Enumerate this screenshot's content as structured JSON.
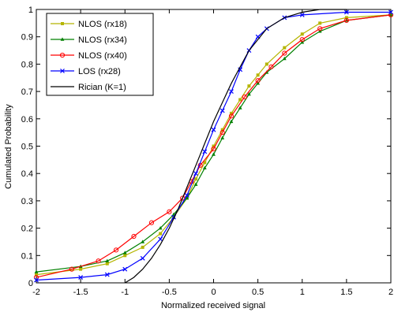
{
  "chart_data": {
    "type": "line",
    "title": "",
    "xlabel": "Normalized received signal",
    "ylabel": "Cumulated Probability",
    "xlim": [
      -2,
      2
    ],
    "ylim": [
      0,
      1
    ],
    "xticks": [
      "-2",
      "-1.5",
      "-1",
      "-0.5",
      "0",
      "0.5",
      "1",
      "1.5",
      "2"
    ],
    "yticks": [
      "0",
      "0.1",
      "0.2",
      "0.3",
      "0.4",
      "0.5",
      "0.6",
      "0.7",
      "0.8",
      "0.9",
      "1"
    ],
    "grid": false,
    "legend_position": "top-left",
    "series": [
      {
        "name": "NLOS (rx18)",
        "color": "#b5b500",
        "marker": "dot",
        "points": [
          [
            -2.0,
            0.03
          ],
          [
            -1.5,
            0.05
          ],
          [
            -1.2,
            0.07
          ],
          [
            -1.0,
            0.1
          ],
          [
            -0.8,
            0.13
          ],
          [
            -0.6,
            0.18
          ],
          [
            -0.45,
            0.24
          ],
          [
            -0.3,
            0.31
          ],
          [
            -0.2,
            0.38
          ],
          [
            -0.1,
            0.44
          ],
          [
            0.0,
            0.5
          ],
          [
            0.1,
            0.56
          ],
          [
            0.2,
            0.62
          ],
          [
            0.3,
            0.67
          ],
          [
            0.4,
            0.72
          ],
          [
            0.5,
            0.76
          ],
          [
            0.6,
            0.8
          ],
          [
            0.8,
            0.86
          ],
          [
            1.0,
            0.91
          ],
          [
            1.2,
            0.95
          ],
          [
            1.5,
            0.97
          ],
          [
            2.0,
            0.98
          ]
        ]
      },
      {
        "name": "NLOS (rx34)",
        "color": "#008000",
        "marker": "triangle",
        "points": [
          [
            -2.0,
            0.04
          ],
          [
            -1.5,
            0.06
          ],
          [
            -1.2,
            0.08
          ],
          [
            -1.0,
            0.11
          ],
          [
            -0.8,
            0.15
          ],
          [
            -0.6,
            0.2
          ],
          [
            -0.45,
            0.25
          ],
          [
            -0.3,
            0.31
          ],
          [
            -0.2,
            0.36
          ],
          [
            -0.1,
            0.42
          ],
          [
            0.0,
            0.47
          ],
          [
            0.1,
            0.53
          ],
          [
            0.2,
            0.59
          ],
          [
            0.3,
            0.64
          ],
          [
            0.4,
            0.69
          ],
          [
            0.5,
            0.73
          ],
          [
            0.6,
            0.77
          ],
          [
            0.8,
            0.82
          ],
          [
            1.0,
            0.88
          ],
          [
            1.2,
            0.92
          ],
          [
            1.5,
            0.96
          ],
          [
            2.0,
            0.98
          ]
        ]
      },
      {
        "name": "NLOS (rx40)",
        "color": "#ff0000",
        "marker": "circle",
        "points": [
          [
            -2.0,
            0.02
          ],
          [
            -1.6,
            0.05
          ],
          [
            -1.3,
            0.08
          ],
          [
            -1.1,
            0.12
          ],
          [
            -0.9,
            0.17
          ],
          [
            -0.7,
            0.22
          ],
          [
            -0.5,
            0.26
          ],
          [
            -0.35,
            0.31
          ],
          [
            -0.25,
            0.37
          ],
          [
            -0.15,
            0.43
          ],
          [
            0.0,
            0.49
          ],
          [
            0.1,
            0.55
          ],
          [
            0.2,
            0.61
          ],
          [
            0.35,
            0.68
          ],
          [
            0.5,
            0.74
          ],
          [
            0.65,
            0.79
          ],
          [
            0.8,
            0.84
          ],
          [
            1.0,
            0.89
          ],
          [
            1.2,
            0.93
          ],
          [
            1.5,
            0.96
          ],
          [
            2.0,
            0.98
          ]
        ]
      },
      {
        "name": "LOS (rx28)",
        "color": "#0000ff",
        "marker": "x",
        "points": [
          [
            -2.0,
            0.01
          ],
          [
            -1.5,
            0.02
          ],
          [
            -1.2,
            0.03
          ],
          [
            -1.0,
            0.05
          ],
          [
            -0.8,
            0.09
          ],
          [
            -0.6,
            0.16
          ],
          [
            -0.45,
            0.24
          ],
          [
            -0.3,
            0.32
          ],
          [
            -0.2,
            0.4
          ],
          [
            -0.1,
            0.48
          ],
          [
            0.0,
            0.56
          ],
          [
            0.1,
            0.63
          ],
          [
            0.2,
            0.7
          ],
          [
            0.3,
            0.78
          ],
          [
            0.4,
            0.85
          ],
          [
            0.5,
            0.9
          ],
          [
            0.6,
            0.93
          ],
          [
            0.8,
            0.97
          ],
          [
            1.0,
            0.98
          ],
          [
            1.5,
            0.99
          ],
          [
            2.0,
            0.99
          ]
        ]
      },
      {
        "name": "Rician (K=1)",
        "color": "#000000",
        "marker": "none",
        "points": [
          [
            -1.0,
            0.0
          ],
          [
            -0.9,
            0.02
          ],
          [
            -0.8,
            0.05
          ],
          [
            -0.7,
            0.09
          ],
          [
            -0.6,
            0.14
          ],
          [
            -0.5,
            0.2
          ],
          [
            -0.4,
            0.27
          ],
          [
            -0.3,
            0.35
          ],
          [
            -0.2,
            0.43
          ],
          [
            -0.1,
            0.51
          ],
          [
            0.0,
            0.59
          ],
          [
            0.1,
            0.66
          ],
          [
            0.2,
            0.73
          ],
          [
            0.3,
            0.79
          ],
          [
            0.4,
            0.85
          ],
          [
            0.5,
            0.89
          ],
          [
            0.6,
            0.93
          ],
          [
            0.8,
            0.97
          ],
          [
            1.0,
            0.99
          ],
          [
            1.2,
            1.0
          ],
          [
            1.5,
            1.0
          ]
        ]
      }
    ]
  }
}
